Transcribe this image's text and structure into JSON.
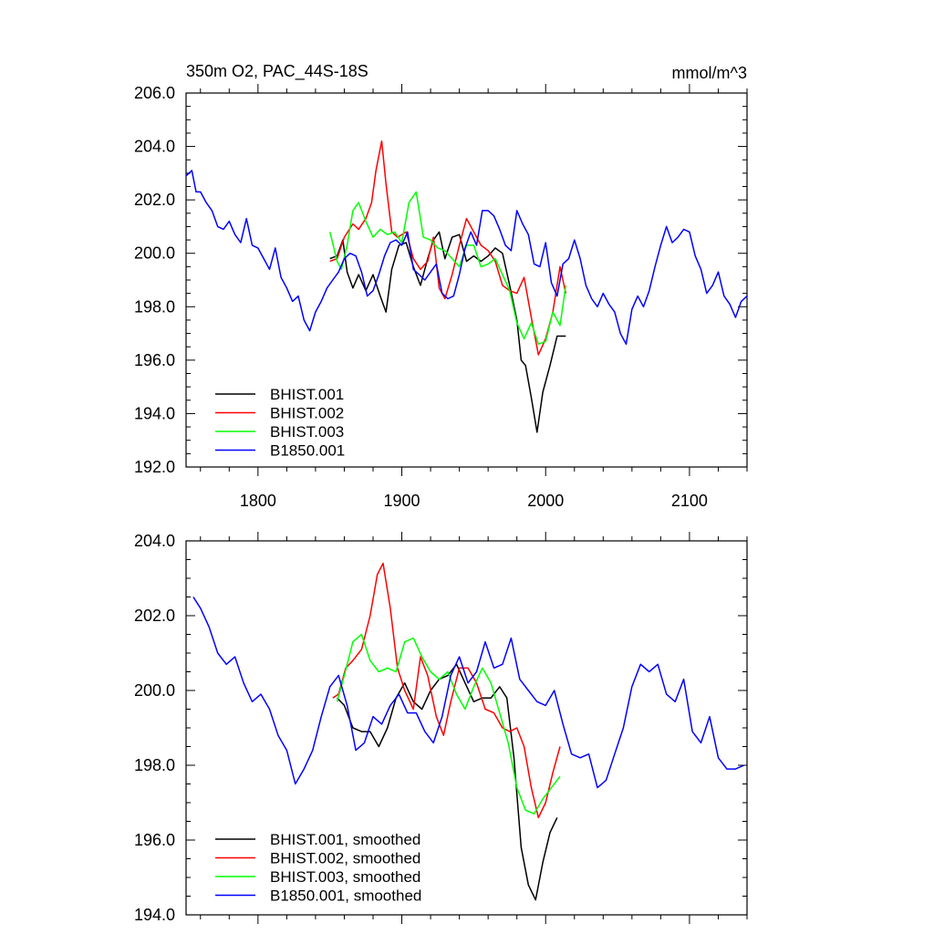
{
  "chart_data": [
    {
      "type": "line",
      "title_left": "350m O2, PAC_44S-18S",
      "title_right": "mmol/m^3",
      "xlabel": "",
      "ylabel": "",
      "xlim": [
        1750,
        2140
      ],
      "ylim": [
        192,
        206
      ],
      "xticks": [
        1800,
        1900,
        2000,
        2100
      ],
      "xtick_labels": [
        "1800",
        "1900",
        "2000",
        "2100"
      ],
      "yticks": [
        192,
        194,
        196,
        198,
        200,
        202,
        204,
        206
      ],
      "ytick_labels": [
        "192.0",
        "194.0",
        "196.0",
        "198.0",
        "200.0",
        "202.0",
        "204.0",
        "206.0"
      ],
      "grid": false,
      "legend_position": "lower-left",
      "series": [
        {
          "name": "BHIST.001",
          "color": "#000000",
          "x": [
            1850,
            1855,
            1859,
            1862,
            1866,
            1870,
            1875,
            1880,
            1885,
            1889,
            1893,
            1898,
            1903,
            1908,
            1913,
            1918,
            1922,
            1926,
            1930,
            1935,
            1940,
            1945,
            1950,
            1955,
            1960,
            1965,
            1970,
            1975,
            1980,
            1983,
            1986,
            1990,
            1994,
            1998,
            2003,
            2008,
            2014
          ],
          "y": [
            199.8,
            199.9,
            200.5,
            199.3,
            198.7,
            199.2,
            198.6,
            199.2,
            198.4,
            197.8,
            199.4,
            200.3,
            200.4,
            199.5,
            198.8,
            199.8,
            200.5,
            200.8,
            199.8,
            200.6,
            200.7,
            199.7,
            199.9,
            199.7,
            199.9,
            200.2,
            200.0,
            198.8,
            197.5,
            196.0,
            195.8,
            194.6,
            193.3,
            194.8,
            195.8,
            196.9,
            196.9
          ]
        },
        {
          "name": "BHIST.002",
          "color": "#ff0000",
          "x": [
            1850,
            1855,
            1860,
            1866,
            1870,
            1875,
            1879,
            1882,
            1886,
            1889,
            1893,
            1897,
            1903,
            1908,
            1913,
            1918,
            1922,
            1926,
            1930,
            1935,
            1940,
            1945,
            1950,
            1955,
            1960,
            1965,
            1970,
            1975,
            1980,
            1985,
            1990,
            1995,
            2000,
            2005,
            2010,
            2014
          ],
          "y": [
            199.7,
            199.8,
            200.6,
            201.1,
            200.9,
            201.3,
            201.9,
            203.1,
            204.2,
            202.6,
            200.8,
            200.6,
            200.8,
            199.8,
            199.4,
            199.7,
            200.6,
            198.7,
            198.3,
            199.2,
            200.3,
            201.3,
            200.8,
            200.3,
            200.1,
            199.7,
            198.8,
            198.6,
            198.5,
            199.1,
            197.6,
            196.2,
            196.8,
            197.8,
            199.5,
            198.5
          ]
        },
        {
          "name": "BHIST.003",
          "color": "#00ff00",
          "x": [
            1850,
            1855,
            1858,
            1862,
            1866,
            1870,
            1875,
            1880,
            1885,
            1890,
            1895,
            1900,
            1905,
            1910,
            1915,
            1920,
            1925,
            1930,
            1935,
            1940,
            1945,
            1950,
            1955,
            1960,
            1965,
            1970,
            1975,
            1980,
            1985,
            1990,
            1995,
            2000,
            2005,
            2010,
            2014
          ],
          "y": [
            200.8,
            199.7,
            199.4,
            200.3,
            201.6,
            201.9,
            201.2,
            200.6,
            200.9,
            200.7,
            200.8,
            200.4,
            201.9,
            202.3,
            200.6,
            200.5,
            200.2,
            200.1,
            199.8,
            199.5,
            200.3,
            200.3,
            199.5,
            199.6,
            199.8,
            199.2,
            198.6,
            197.4,
            196.8,
            197.4,
            196.6,
            196.7,
            197.8,
            197.3,
            198.8
          ]
        },
        {
          "name": "B1850.001",
          "color": "#0000ff",
          "x": [
            1750,
            1754,
            1757,
            1760,
            1764,
            1768,
            1772,
            1776,
            1780,
            1784,
            1788,
            1792,
            1796,
            1800,
            1804,
            1808,
            1812,
            1816,
            1820,
            1824,
            1828,
            1832,
            1836,
            1840,
            1844,
            1848,
            1852,
            1856,
            1860,
            1864,
            1868,
            1872,
            1876,
            1880,
            1884,
            1888,
            1892,
            1896,
            1900,
            1904,
            1908,
            1912,
            1916,
            1920,
            1924,
            1928,
            1932,
            1936,
            1940,
            1944,
            1948,
            1952,
            1956,
            1960,
            1964,
            1968,
            1972,
            1976,
            1980,
            1984,
            1988,
            1992,
            1996,
            2000,
            2004,
            2008,
            2012,
            2016,
            2020,
            2024,
            2028,
            2032,
            2036,
            2040,
            2044,
            2048,
            2052,
            2056,
            2060,
            2064,
            2068,
            2072,
            2076,
            2080,
            2084,
            2088,
            2092,
            2096,
            2100,
            2104,
            2108,
            2112,
            2116,
            2120,
            2124,
            2128,
            2132,
            2136,
            2140
          ],
          "y": [
            202.9,
            203.1,
            202.3,
            202.3,
            201.9,
            201.6,
            201.0,
            200.9,
            201.2,
            200.7,
            200.4,
            201.3,
            200.3,
            200.2,
            199.8,
            199.4,
            200.2,
            199.1,
            198.7,
            198.2,
            198.4,
            197.5,
            197.1,
            197.8,
            198.2,
            198.7,
            199.0,
            199.3,
            199.8,
            200.0,
            199.9,
            199.3,
            198.4,
            198.6,
            199.2,
            199.9,
            200.4,
            200.5,
            200.3,
            200.8,
            199.4,
            199.2,
            199.0,
            199.3,
            199.6,
            198.5,
            198.3,
            198.4,
            199.2,
            200.2,
            200.8,
            200.3,
            201.6,
            201.6,
            201.4,
            200.9,
            200.3,
            200.1,
            201.6,
            201.1,
            200.7,
            199.6,
            199.5,
            200.4,
            198.9,
            198.4,
            199.6,
            199.8,
            200.5,
            199.8,
            198.8,
            198.3,
            198.0,
            198.5,
            198.1,
            197.8,
            197.0,
            196.6,
            197.9,
            198.4,
            198.0,
            198.6,
            199.5,
            200.3,
            201.0,
            200.4,
            200.6,
            200.9,
            200.8,
            199.9,
            199.4,
            198.5,
            198.8,
            199.3,
            198.4,
            198.1,
            197.6,
            198.2,
            198.4
          ]
        }
      ]
    },
    {
      "type": "line",
      "xlabel": "",
      "ylabel": "",
      "xlim": [
        1750,
        2140
      ],
      "ylim": [
        194,
        204
      ],
      "xticks": [
        1800,
        1900,
        2000,
        2100
      ],
      "yticks": [
        194,
        196,
        198,
        200,
        202,
        204
      ],
      "ytick_labels": [
        "194.0",
        "196.0",
        "198.0",
        "200.0",
        "202.0",
        "204.0"
      ],
      "grid": false,
      "legend_position": "lower-left",
      "series": [
        {
          "name": "BHIST.001, smoothed",
          "color": "#000000",
          "x": [
            1855,
            1860,
            1866,
            1872,
            1878,
            1884,
            1890,
            1896,
            1902,
            1908,
            1914,
            1920,
            1926,
            1932,
            1938,
            1944,
            1950,
            1956,
            1962,
            1968,
            1973,
            1978,
            1983,
            1988,
            1993,
            1998,
            2003,
            2008
          ],
          "y": [
            199.8,
            199.6,
            199.0,
            198.9,
            198.9,
            198.5,
            199.0,
            199.8,
            200.2,
            199.7,
            199.5,
            200.0,
            200.3,
            200.4,
            200.7,
            200.2,
            199.7,
            199.8,
            199.8,
            200.1,
            199.8,
            198.2,
            195.8,
            194.8,
            194.4,
            195.4,
            196.2,
            196.6
          ]
        },
        {
          "name": "BHIST.002, smoothed",
          "color": "#ff0000",
          "x": [
            1852,
            1856,
            1861,
            1866,
            1872,
            1878,
            1883,
            1887,
            1892,
            1897,
            1902,
            1908,
            1913,
            1918,
            1924,
            1929,
            1934,
            1940,
            1946,
            1952,
            1958,
            1964,
            1970,
            1975,
            1980,
            1985,
            1990,
            1995,
            2000,
            2005,
            2010
          ],
          "y": [
            199.8,
            199.9,
            200.6,
            200.8,
            201.1,
            202.0,
            203.1,
            203.4,
            202.2,
            200.6,
            200.0,
            199.5,
            200.9,
            200.4,
            199.3,
            198.8,
            199.7,
            200.6,
            200.6,
            200.2,
            199.5,
            199.4,
            199.0,
            198.9,
            199.0,
            198.5,
            197.4,
            196.6,
            197.0,
            197.8,
            198.5
          ]
        },
        {
          "name": "BHIST.003, smoothed",
          "color": "#00ff00",
          "x": [
            1855,
            1860,
            1866,
            1872,
            1878,
            1884,
            1890,
            1896,
            1902,
            1908,
            1914,
            1920,
            1926,
            1932,
            1938,
            1944,
            1950,
            1956,
            1962,
            1968,
            1974,
            1980,
            1986,
            1992,
            1998,
            2004,
            2010
          ],
          "y": [
            199.7,
            200.4,
            201.3,
            201.5,
            200.8,
            200.5,
            200.6,
            200.5,
            201.3,
            201.4,
            200.9,
            200.5,
            200.3,
            200.5,
            199.9,
            199.5,
            200.1,
            200.6,
            200.2,
            199.4,
            198.6,
            197.4,
            196.8,
            196.7,
            197.1,
            197.4,
            197.7
          ]
        },
        {
          "name": "B1850.001, smoothed",
          "color": "#0000ff",
          "x": [
            1755,
            1760,
            1766,
            1772,
            1778,
            1784,
            1790,
            1796,
            1802,
            1808,
            1814,
            1820,
            1826,
            1832,
            1838,
            1844,
            1850,
            1856,
            1862,
            1868,
            1874,
            1880,
            1886,
            1892,
            1898,
            1904,
            1910,
            1916,
            1922,
            1928,
            1934,
            1940,
            1946,
            1952,
            1958,
            1964,
            1970,
            1976,
            1982,
            1988,
            1994,
            2000,
            2006,
            2012,
            2018,
            2024,
            2030,
            2036,
            2042,
            2048,
            2054,
            2060,
            2066,
            2072,
            2078,
            2084,
            2090,
            2096,
            2102,
            2108,
            2114,
            2120,
            2126,
            2132,
            2138
          ],
          "y": [
            202.5,
            202.2,
            201.7,
            201.0,
            200.7,
            200.9,
            200.2,
            199.7,
            199.9,
            199.5,
            198.8,
            198.4,
            197.5,
            197.9,
            198.4,
            199.3,
            200.1,
            200.4,
            199.6,
            198.4,
            198.6,
            199.3,
            199.1,
            199.6,
            199.9,
            199.4,
            199.4,
            198.9,
            198.6,
            199.3,
            200.4,
            200.9,
            200.2,
            200.5,
            201.3,
            200.6,
            200.7,
            201.4,
            200.3,
            200.0,
            199.7,
            199.6,
            200.0,
            199.1,
            198.3,
            198.2,
            198.3,
            197.4,
            197.6,
            198.3,
            199.0,
            200.1,
            200.7,
            200.5,
            200.7,
            199.9,
            199.7,
            200.3,
            198.9,
            198.6,
            199.3,
            198.2,
            197.9,
            197.9,
            198.0
          ]
        }
      ]
    }
  ]
}
